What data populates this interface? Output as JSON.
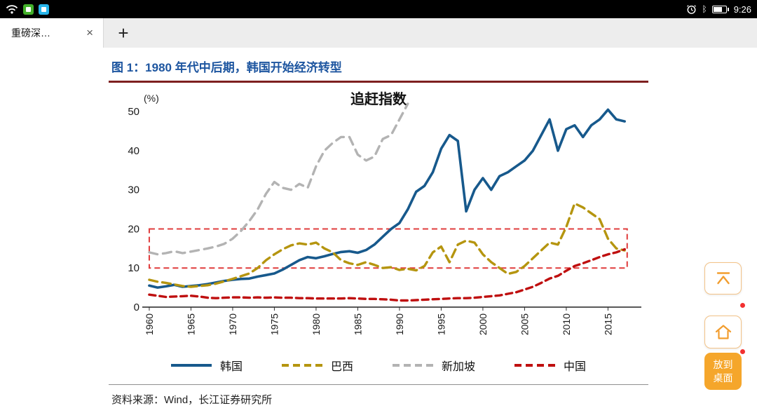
{
  "status_bar": {
    "time": "9:26"
  },
  "tab_bar": {
    "active_tab_title": "重磅深…"
  },
  "icons": {
    "close_tab": "×",
    "new_tab": "+",
    "bluetooth": "ᛒ"
  },
  "article": {
    "figure_title": "图 1：1980 年代中后期，韩国开始经济转型",
    "source": "资料来源：Wind，长江证券研究所"
  },
  "floating_buttons": {
    "add_to_desktop": "放到桌面"
  },
  "chart_data": {
    "type": "line",
    "title": "追赶指数",
    "unit_label": "(%)",
    "xlim": [
      1959.5,
      2019
    ],
    "ylim": [
      0,
      52
    ],
    "x_ticks": [
      1960,
      1965,
      1970,
      1975,
      1980,
      1985,
      1990,
      1995,
      2000,
      2005,
      2010,
      2015
    ],
    "y_ticks": [
      0,
      10,
      20,
      30,
      40,
      50
    ],
    "grid": false,
    "legend_position": "bottom",
    "highlight_band": {
      "x_from": 1960,
      "x_to": 2017.3,
      "y_from": 10,
      "y_to": 20,
      "color": "#e03c3c"
    },
    "series": [
      {
        "name": "韩国",
        "color": "#17598c",
        "style": "solid",
        "width": 3.6,
        "start_year": 1960,
        "values": [
          5.5,
          5.0,
          5.3,
          5.7,
          5.2,
          5.4,
          5.6,
          5.9,
          6.3,
          6.7,
          7.0,
          7.2,
          7.3,
          7.8,
          8.2,
          8.6,
          9.6,
          10.8,
          12.0,
          12.8,
          12.5,
          13.0,
          13.6,
          14.1,
          14.3,
          13.9,
          14.6,
          16.0,
          18.0,
          20.0,
          21.5,
          25.0,
          29.5,
          31.0,
          34.5,
          40.5,
          44.0,
          42.5,
          24.5,
          30.0,
          33.0,
          30.0,
          33.5,
          34.5,
          36.0,
          37.5,
          40.0,
          44.0,
          48.0,
          40.0,
          45.5,
          46.5,
          43.5,
          46.5,
          48.0,
          50.5,
          48.0,
          47.5
        ]
      },
      {
        "name": "巴西",
        "color": "#b5950f",
        "style": "dashed",
        "dash": "12 7",
        "width": 3.4,
        "start_year": 1960,
        "values": [
          7.0,
          6.5,
          6.2,
          5.8,
          5.4,
          5.2,
          5.4,
          5.6,
          6.0,
          6.6,
          7.2,
          7.9,
          8.6,
          10.0,
          12.0,
          13.5,
          14.8,
          15.8,
          16.3,
          16.0,
          16.5,
          15.0,
          14.0,
          12.0,
          11.2,
          10.8,
          11.5,
          10.8,
          10.0,
          10.2,
          9.5,
          9.8,
          9.4,
          10.5,
          14.0,
          15.5,
          11.5,
          16.0,
          17.0,
          16.5,
          13.5,
          11.5,
          10.0,
          8.5,
          9.0,
          10.5,
          12.5,
          14.5,
          16.5,
          16.0,
          20.5,
          26.5,
          25.5,
          24.0,
          22.5,
          17.5,
          15.0,
          14.5
        ]
      },
      {
        "name": "新加坡",
        "color": "#b3b3b3",
        "style": "dashed",
        "dash": "12 8",
        "width": 3.4,
        "start_year": 1960,
        "values": [
          14.0,
          13.5,
          13.8,
          14.3,
          13.8,
          14.2,
          14.6,
          15.0,
          15.5,
          16.2,
          17.5,
          19.5,
          22.0,
          25.0,
          29.0,
          32.0,
          30.5,
          30.0,
          31.5,
          30.5,
          36.0,
          40.0,
          42.0,
          43.5,
          43.5,
          39.0,
          37.5,
          38.5,
          43.0,
          44.0,
          48.0,
          52.0
        ]
      },
      {
        "name": "中国",
        "color": "#bf0f0f",
        "style": "dashed",
        "dash": "9 6",
        "width": 3.4,
        "start_year": 1960,
        "values": [
          3.2,
          2.9,
          2.6,
          2.7,
          2.8,
          2.9,
          2.7,
          2.4,
          2.3,
          2.4,
          2.5,
          2.5,
          2.4,
          2.5,
          2.4,
          2.5,
          2.4,
          2.4,
          2.3,
          2.3,
          2.2,
          2.2,
          2.2,
          2.2,
          2.3,
          2.2,
          2.1,
          2.1,
          2.0,
          1.9,
          1.7,
          1.7,
          1.8,
          1.9,
          2.0,
          2.1,
          2.2,
          2.3,
          2.3,
          2.4,
          2.6,
          2.8,
          3.0,
          3.4,
          3.8,
          4.5,
          5.2,
          6.2,
          7.3,
          8.0,
          9.3,
          10.5,
          11.2,
          12.0,
          12.8,
          13.5,
          14.0,
          14.8
        ]
      }
    ]
  }
}
